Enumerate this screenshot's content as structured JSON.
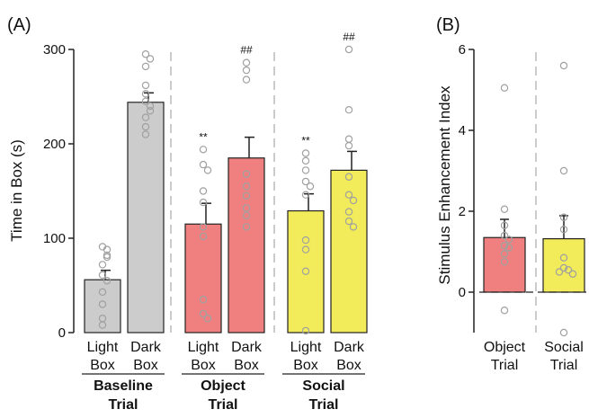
{
  "chart_data": [
    {
      "panel": "(A)",
      "type": "bar",
      "ylabel": "Time in Box (s)",
      "ylim": [
        0,
        300
      ],
      "yticks": [
        "0",
        "100",
        "200",
        "300"
      ],
      "grid": false,
      "groups": [
        {
          "label": [
            "Baseline",
            "Trial"
          ],
          "bars": [
            {
              "label": [
                "Light",
                "Box"
              ],
              "value": 56,
              "sem": 10,
              "color": "#cccccc",
              "sig": "",
              "points": [
                91,
                88,
                82,
                80,
                72,
                61,
                55,
                43,
                30,
                15,
                8
              ]
            },
            {
              "label": [
                "Dark",
                "Box"
              ],
              "value": 244,
              "sem": 10,
              "color": "#cccccc",
              "sig": "",
              "points": [
                295,
                290,
                282,
                262,
                253,
                245,
                240,
                235,
                228,
                218,
                210
              ]
            }
          ]
        },
        {
          "label": [
            "Object",
            "Trial"
          ],
          "bars": [
            {
              "label": [
                "Light",
                "Box"
              ],
              "value": 115,
              "sem": 22,
              "color": "#f08080",
              "sig": "**",
              "points": [
                194,
                178,
                172,
                150,
                138,
                112,
                102,
                35,
                20,
                15
              ]
            },
            {
              "label": [
                "Dark",
                "Box"
              ],
              "value": 185,
              "sem": 22,
              "color": "#f08080",
              "sig": "##",
              "points": [
                286,
                278,
                268,
                168,
                155,
                145,
                132,
                124,
                112
              ]
            }
          ]
        },
        {
          "label": [
            "Social",
            "Trial"
          ],
          "bars": [
            {
              "label": [
                "Light",
                "Box"
              ],
              "value": 129,
              "sem": 18,
              "color": "#f2ec5a",
              "sig": "**",
              "points": [
                190,
                182,
                172,
                160,
                155,
                146,
                98,
                88,
                65,
                2
              ]
            },
            {
              "label": [
                "Dark",
                "Box"
              ],
              "value": 172,
              "sem": 20,
              "color": "#f2ec5a",
              "sig": "##",
              "points": [
                300,
                236,
                205,
                198,
                165,
                146,
                140,
                128,
                118,
                112
              ]
            }
          ]
        }
      ]
    },
    {
      "panel": "(B)",
      "type": "bar",
      "ylabel": "Stimulus Enhancement Index",
      "ylim": [
        -1,
        6
      ],
      "yticks": [
        "0",
        "2",
        "4",
        "6"
      ],
      "grid": false,
      "reference_line": 0,
      "bars": [
        {
          "label": [
            "Object",
            "Trial"
          ],
          "value": 1.35,
          "sem": 0.45,
          "color": "#f08080",
          "points": [
            5.05,
            2.05,
            1.65,
            1.4,
            1.3,
            1.15,
            1.1,
            0.95,
            0.75,
            -0.45
          ]
        },
        {
          "label": [
            "Social",
            "Trial"
          ],
          "value": 1.32,
          "sem": 0.57,
          "color": "#f2ec5a",
          "points": [
            5.6,
            3.0,
            1.85,
            1.55,
            0.85,
            0.6,
            0.55,
            0.5,
            0.45,
            -1.0
          ]
        }
      ]
    }
  ]
}
